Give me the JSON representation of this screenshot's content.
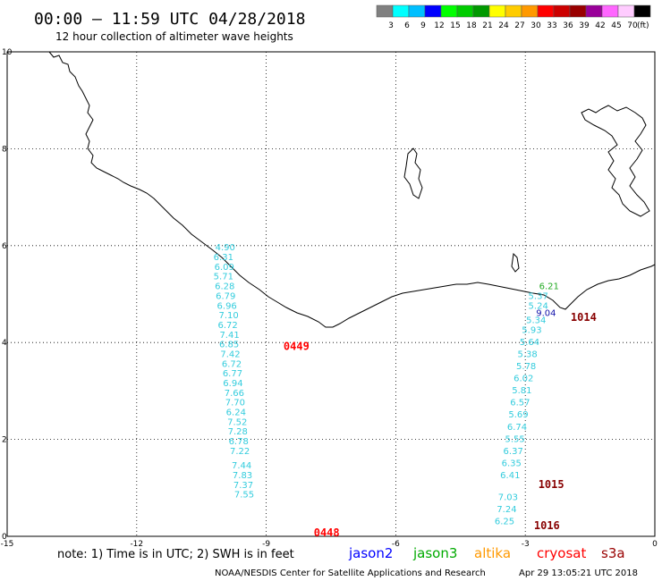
{
  "header": {
    "title": "00:00 – 11:59 UTC 04/28/2018",
    "subtitle": "12 hour collection of altimeter wave heights"
  },
  "colorbar": {
    "unit": "(ft)",
    "bins": [
      {
        "color": "#808080",
        "label": "3"
      },
      {
        "color": "#00ffff",
        "label": "6"
      },
      {
        "color": "#00bfff",
        "label": "9"
      },
      {
        "color": "#0000ff",
        "label": "12"
      },
      {
        "color": "#00ff00",
        "label": "15"
      },
      {
        "color": "#00cc00",
        "label": "18"
      },
      {
        "color": "#009900",
        "label": "21"
      },
      {
        "color": "#ffff00",
        "label": "24"
      },
      {
        "color": "#ffcc00",
        "label": "27"
      },
      {
        "color": "#ff9900",
        "label": "30"
      },
      {
        "color": "#ff0000",
        "label": "33"
      },
      {
        "color": "#cc0000",
        "label": "36"
      },
      {
        "color": "#990000",
        "label": "39"
      },
      {
        "color": "#990099",
        "label": "42"
      },
      {
        "color": "#ff66ff",
        "label": "45"
      },
      {
        "color": "#ffccff",
        "label": "70"
      },
      {
        "color": "#000000",
        "label": ""
      }
    ]
  },
  "map": {
    "lon_range": [
      -15,
      0
    ],
    "lat_range": [
      0,
      10
    ],
    "x_ticks": [
      "-15",
      "-12",
      "-9",
      "-6",
      "-3",
      "0"
    ],
    "y_ticks": [
      "0",
      "2",
      "4",
      "6",
      "8",
      "10"
    ]
  },
  "tracks": [
    {
      "satellite": "jason2",
      "color": "#33ccdd",
      "points": [
        {
          "lon": -9.95,
          "lat": 5.9,
          "v": "4.90"
        },
        {
          "lon": -9.99,
          "lat": 5.7,
          "v": "6.31"
        },
        {
          "lon": -9.97,
          "lat": 5.5,
          "v": "6.09"
        },
        {
          "lon": -9.99,
          "lat": 5.3,
          "v": "5.71"
        },
        {
          "lon": -9.96,
          "lat": 5.1,
          "v": "6.28"
        },
        {
          "lon": -9.94,
          "lat": 4.9,
          "v": "6.79"
        },
        {
          "lon": -9.91,
          "lat": 4.7,
          "v": "6.96"
        },
        {
          "lon": -9.87,
          "lat": 4.5,
          "v": "7.10"
        },
        {
          "lon": -9.89,
          "lat": 4.3,
          "v": "6.72"
        },
        {
          "lon": -9.85,
          "lat": 4.1,
          "v": "7.41"
        },
        {
          "lon": -9.86,
          "lat": 3.9,
          "v": "6.85"
        },
        {
          "lon": -9.83,
          "lat": 3.7,
          "v": "7.42"
        },
        {
          "lon": -9.8,
          "lat": 3.5,
          "v": "6.72"
        },
        {
          "lon": -9.78,
          "lat": 3.3,
          "v": "6.77"
        },
        {
          "lon": -9.77,
          "lat": 3.1,
          "v": "6.94"
        },
        {
          "lon": -9.74,
          "lat": 2.9,
          "v": "7.66"
        },
        {
          "lon": -9.72,
          "lat": 2.7,
          "v": "7.70"
        },
        {
          "lon": -9.7,
          "lat": 2.5,
          "v": "6.24"
        },
        {
          "lon": -9.67,
          "lat": 2.3,
          "v": "7.52"
        },
        {
          "lon": -9.66,
          "lat": 2.1,
          "v": "7.28"
        },
        {
          "lon": -9.64,
          "lat": 1.9,
          "v": "6.78"
        },
        {
          "lon": -9.61,
          "lat": 1.7,
          "v": "7.22"
        },
        {
          "lon": -9.57,
          "lat": 1.4,
          "v": "7.44"
        },
        {
          "lon": -9.55,
          "lat": 1.2,
          "v": "7.83"
        },
        {
          "lon": -9.53,
          "lat": 1.0,
          "v": "7.37"
        },
        {
          "lon": -9.51,
          "lat": 0.8,
          "v": "7.55"
        }
      ]
    },
    {
      "satellite": "jason2",
      "color": "#33ccdd",
      "points": [
        {
          "lon": -2.7,
          "lat": 4.9,
          "v": "5.37"
        },
        {
          "lon": -2.7,
          "lat": 4.7,
          "v": "5.24"
        },
        {
          "lon": -2.75,
          "lat": 4.4,
          "v": "5.34"
        },
        {
          "lon": -2.85,
          "lat": 4.2,
          "v": "5.93"
        },
        {
          "lon": -2.9,
          "lat": 3.95,
          "v": "5.64"
        },
        {
          "lon": -2.95,
          "lat": 3.7,
          "v": "5.38"
        },
        {
          "lon": -2.98,
          "lat": 3.45,
          "v": "5.78"
        },
        {
          "lon": -3.04,
          "lat": 3.2,
          "v": "6.02"
        },
        {
          "lon": -3.08,
          "lat": 2.95,
          "v": "5.81"
        },
        {
          "lon": -3.12,
          "lat": 2.7,
          "v": "6.57"
        },
        {
          "lon": -3.16,
          "lat": 2.45,
          "v": "5.69"
        },
        {
          "lon": -3.19,
          "lat": 2.2,
          "v": "6.74"
        },
        {
          "lon": -3.24,
          "lat": 1.95,
          "v": "5.55"
        },
        {
          "lon": -3.28,
          "lat": 1.7,
          "v": "6.37"
        },
        {
          "lon": -3.32,
          "lat": 1.45,
          "v": "6.35"
        },
        {
          "lon": -3.35,
          "lat": 1.2,
          "v": "6.41"
        },
        {
          "lon": -3.4,
          "lat": 0.75,
          "v": "7.03"
        },
        {
          "lon": -3.43,
          "lat": 0.5,
          "v": "7.24"
        },
        {
          "lon": -3.48,
          "lat": 0.25,
          "v": "6.25"
        }
      ]
    },
    {
      "satellite": "jason3",
      "color": "#22aa22",
      "points": [
        {
          "lon": -2.45,
          "lat": 5.1,
          "v": "6.21"
        }
      ]
    },
    {
      "satellite": "jason2",
      "color": "#1111aa",
      "points": [
        {
          "lon": -2.52,
          "lat": 4.55,
          "v": "9.04"
        }
      ]
    }
  ],
  "time_labels": [
    {
      "text": "0449",
      "lon": -8.3,
      "lat": 3.85,
      "color": "#ff0000"
    },
    {
      "text": "0448",
      "lon": -7.6,
      "lat": 0.0,
      "color": "#ff0000"
    },
    {
      "text": "1014",
      "lon": -1.65,
      "lat": 4.45,
      "color": "#880000"
    },
    {
      "text": "1015",
      "lon": -2.4,
      "lat": 1.0,
      "color": "#880000"
    },
    {
      "text": "1016",
      "lon": -2.5,
      "lat": 0.15,
      "color": "#880000"
    }
  ],
  "note": "note: 1) Time is in UTC; 2) SWH is in feet",
  "satellites": [
    {
      "name": "jason2",
      "color": "#0000ff"
    },
    {
      "name": "jason3",
      "color": "#00aa00"
    },
    {
      "name": "altika",
      "color": "#ff9900"
    },
    {
      "name": "cryosat",
      "color": "#ff0000"
    },
    {
      "name": "s3a",
      "color": "#990000"
    }
  ],
  "footer": {
    "org": "NOAA/NESDIS Center for Satellite Applications and Research",
    "timestamp": "Apr 29 13:05:21 UTC 2018"
  }
}
